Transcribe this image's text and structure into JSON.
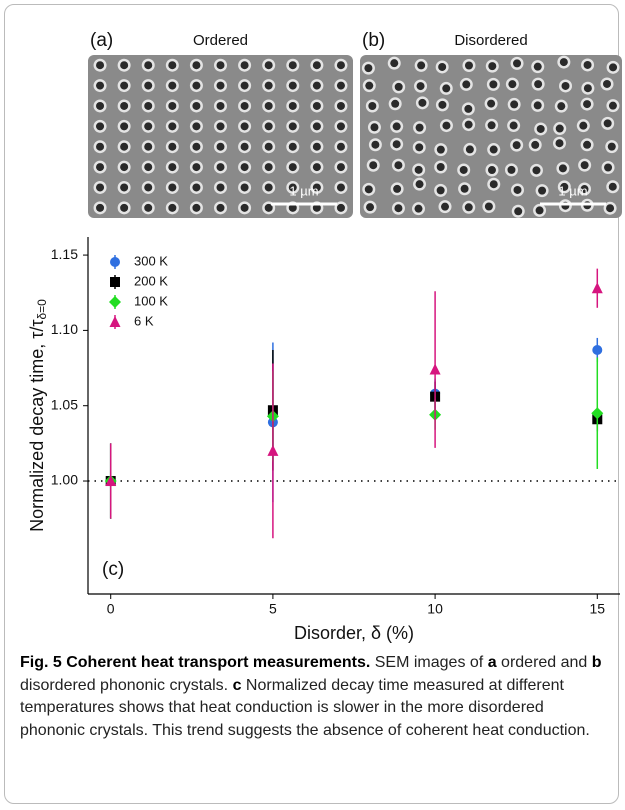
{
  "panels": [
    {
      "label": "(a)",
      "title": "Ordered",
      "scale_bar": "1 µm",
      "layout": "ordered"
    },
    {
      "label": "(b)",
      "title": "Disordered",
      "scale_bar": "1 µm",
      "layout": "disordered"
    }
  ],
  "chart_data": {
    "type": "scatter",
    "panel_label": "(c)",
    "x_label": "Disorder, δ (%)",
    "y_label": {
      "main": "Normalized decay time, τ/τ",
      "sub": "δ=0"
    },
    "x": [
      0,
      5,
      10,
      15
    ],
    "series": [
      {
        "name": "300 K",
        "color": "#2f6fe0",
        "marker": "circle",
        "values": [
          1.0,
          1.039,
          1.058,
          1.087
        ],
        "errors": [
          0.025,
          0.053,
          0.01,
          0.008
        ]
      },
      {
        "name": "200 K",
        "color": "#000000",
        "marker": "square",
        "values": [
          1.0,
          1.047,
          1.056,
          1.041
        ],
        "errors": [
          0.025,
          0.04,
          0.01,
          0.008
        ]
      },
      {
        "name": "100 K",
        "color": "#22dd22",
        "marker": "diamond",
        "values": [
          1.0,
          1.043,
          1.044,
          1.045
        ],
        "errors": [
          0.025,
          0.03,
          0.01,
          0.037
        ]
      },
      {
        "name": "6 K",
        "color": "#d6157f",
        "marker": "triangle",
        "values": [
          1.0,
          1.02,
          1.074,
          1.128
        ],
        "errors": [
          0.025,
          0.058,
          0.052,
          0.013
        ]
      }
    ],
    "reference_line": 1.0,
    "xlim": [
      -0.7,
      15.7
    ],
    "xticks": [
      0,
      5,
      10,
      15
    ],
    "ylim": [
      0.925,
      1.162
    ],
    "yticks": [
      {
        "value": 1.0,
        "label": "1.00"
      },
      1.05,
      {
        "value": 1.1,
        "label": "1.10"
      },
      1.15
    ],
    "legend": "upper-left"
  },
  "caption": {
    "segments": [
      {
        "text": "Fig. 5 Coherent heat transport measurements.",
        "bold": true
      },
      {
        "text": " SEM images of ",
        "bold": false
      },
      {
        "text": "a",
        "bold": true
      },
      {
        "text": " ordered and ",
        "bold": false
      },
      {
        "text": "b",
        "bold": true
      },
      {
        "text": " disordered phononic crystals. ",
        "bold": false
      },
      {
        "text": "c",
        "bold": true
      },
      {
        "text": " Normalized decay time measured at different temperatures shows that heat conduction is slower in the more disordered phononic crystals. This trend suggests the absence of coherent heat conduction.",
        "bold": false
      }
    ]
  }
}
